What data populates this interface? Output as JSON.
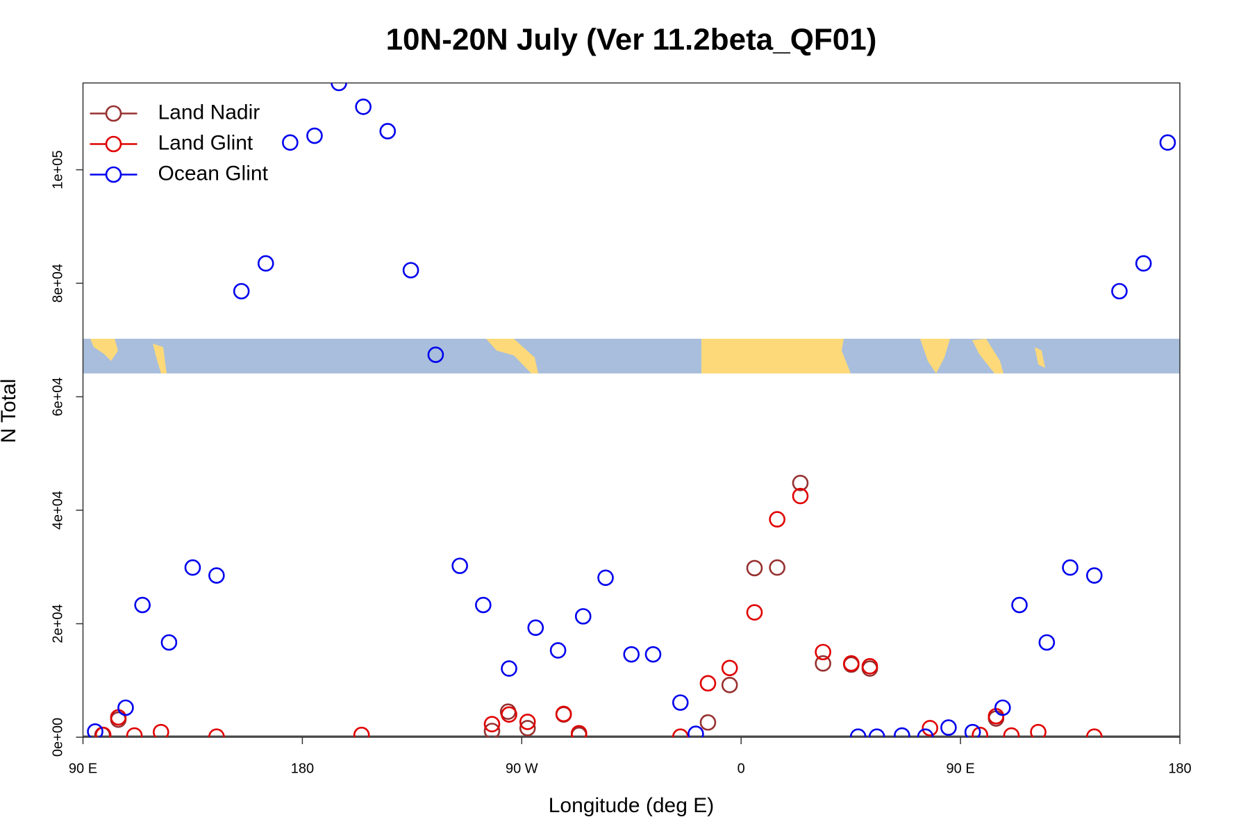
{
  "chart_data": {
    "type": "scatter",
    "title": "10N-20N July (Ver 11.2beta_QF01)",
    "xlabel": "Longitude (deg E)",
    "ylabel": "N Total",
    "xlim": [
      90,
      540
    ],
    "ylim": [
      0,
      115300
    ],
    "xticks": [
      {
        "value": 90,
        "label": "90 E"
      },
      180,
      {
        "value": 270,
        "label": "90 W"
      },
      {
        "value": 360,
        "label": "0"
      },
      {
        "value": 450,
        "label": "90 E"
      },
      {
        "value": 540,
        "label": "180"
      }
    ],
    "yticks": [
      {
        "value": 0,
        "label": "0e+00"
      },
      {
        "value": 20000,
        "label": "2e+04"
      },
      {
        "value": 40000,
        "label": "4e+04"
      },
      {
        "value": 60000,
        "label": "6e+04"
      },
      {
        "value": 80000,
        "label": "8e+04"
      },
      {
        "value": 100000,
        "label": "1e+05"
      }
    ],
    "legend": "top-left",
    "series": [
      {
        "name": "Land Nadir",
        "color": "#96302f",
        "x": [
          98,
          104.5,
          257.8,
          264.4,
          272.4,
          287.2,
          293.5,
          346.4,
          355.3,
          365.5,
          374.8,
          384.3,
          393.6,
          405.2,
          412.8,
          464.6
        ],
        "values": [
          400,
          3100,
          1100,
          4500,
          1600,
          4000,
          400,
          2600,
          9200,
          29800,
          29900,
          44800,
          13000,
          12800,
          12100,
          3300
        ]
      },
      {
        "name": "Land Glint",
        "color": "#e00000",
        "x": [
          98.3,
          104.5,
          111.1,
          122,
          144.8,
          204.3,
          257.8,
          264.8,
          272.4,
          287.2,
          293.5,
          335.1,
          346.4,
          355.3,
          365.5,
          374.8,
          384.3,
          393.6,
          405.2,
          412.8,
          437.5,
          458,
          464.6,
          470.9,
          481.9,
          504.9
        ],
        "values": [
          400,
          3500,
          300,
          900,
          100,
          400,
          2300,
          4000,
          2700,
          4100,
          700,
          100,
          9500,
          12200,
          22000,
          38400,
          42500,
          15000,
          13000,
          12500,
          1600,
          400,
          3700,
          300,
          900,
          100
        ]
      },
      {
        "name": "Ocean Glint",
        "color": "#0000ee",
        "x": [
          95,
          107.5,
          114.4,
          125.3,
          135,
          144.8,
          155,
          165,
          175,
          185,
          195,
          205,
          215,
          224.5,
          234.7,
          244.6,
          254.2,
          264.8,
          275.7,
          284.9,
          295.2,
          304.4,
          315,
          323.9,
          335.1,
          341.4,
          408,
          415.7,
          426,
          435.6,
          445.1,
          455,
          467.3,
          474.2,
          485.4,
          495,
          504.9,
          515.2,
          525.1,
          535
        ],
        "values": [
          1000,
          5200,
          23300,
          16700,
          29900,
          28500,
          78600,
          83500,
          104800,
          106000,
          115300,
          111100,
          106800,
          82300,
          67400,
          30200,
          23300,
          12100,
          19300,
          15300,
          21300,
          28100,
          14600,
          14600,
          6100,
          600,
          100,
          100,
          300,
          100,
          1700,
          900,
          5200,
          23300,
          16700,
          29900,
          28500,
          78600,
          83500,
          104800
        ]
      }
    ]
  }
}
